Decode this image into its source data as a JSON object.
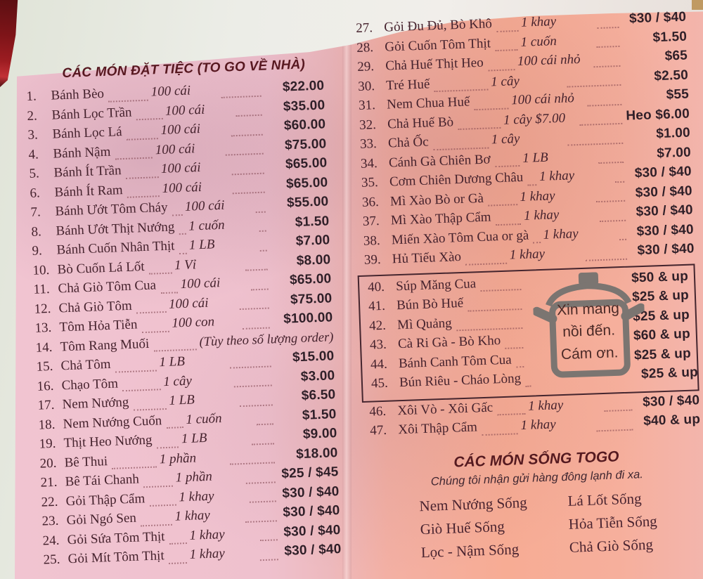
{
  "left_page": {
    "header": "CÁC MÓN ĐẶT TIỆC (TO GO VỀ NHÀ)",
    "items": [
      {
        "num": "1.",
        "name": "Bánh Bèo",
        "qty": "100 cái",
        "price": "$22.00"
      },
      {
        "num": "2.",
        "name": "Bánh Lọc Trần",
        "qty": "100 cái",
        "price": "$35.00"
      },
      {
        "num": "3.",
        "name": "Bánh Lọc Lá",
        "qty": "100 cái",
        "price": "$60.00"
      },
      {
        "num": "4.",
        "name": "Bánh Nậm",
        "qty": "100 cái",
        "price": "$75.00"
      },
      {
        "num": "5.",
        "name": "Bánh Ít Trần",
        "qty": "100 cái",
        "price": "$65.00"
      },
      {
        "num": "6.",
        "name": "Bánh Ít Ram",
        "qty": "100 cái",
        "price": "$65.00"
      },
      {
        "num": "7.",
        "name": "Bánh Ướt Tôm Cháy",
        "qty": "100 cái",
        "price": "$55.00"
      },
      {
        "num": "8.",
        "name": "Bánh Ướt Thịt Nướng",
        "qty": "1 cuốn",
        "price": "$1.50"
      },
      {
        "num": "9.",
        "name": "Bánh Cuốn Nhân Thịt",
        "qty": "1 LB",
        "price": "$7.00"
      },
      {
        "num": "10.",
        "name": "Bò Cuốn Lá Lốt",
        "qty": "1 Vỉ",
        "price": "$8.00"
      },
      {
        "num": "11.",
        "name": "Chả Giò Tôm Cua",
        "qty": "100 cái",
        "price": "$65.00"
      },
      {
        "num": "12.",
        "name": "Chả Giò Tôm",
        "qty": "100 cái",
        "price": "$75.00"
      },
      {
        "num": "13.",
        "name": "Tôm Hỏa Tiễn",
        "qty": "100 con",
        "price": "$100.00"
      },
      {
        "num": "14.",
        "name": "Tôm Rang Muối",
        "note": "(Tùy theo số lượng order)"
      },
      {
        "num": "15.",
        "name": "Chả Tôm",
        "qty": "1 LB",
        "price": "$15.00"
      },
      {
        "num": "16.",
        "name": "Chạo Tôm",
        "qty": "1 cây",
        "price": "$3.00"
      },
      {
        "num": "17.",
        "name": "Nem Nướng",
        "qty": "1 LB",
        "price": "$6.50"
      },
      {
        "num": "18.",
        "name": "Nem Nướng Cuốn",
        "qty": "1 cuốn",
        "price": "$1.50"
      },
      {
        "num": "19.",
        "name": "Thịt Heo Nướng",
        "qty": "1 LB",
        "price": "$9.00"
      },
      {
        "num": "20.",
        "name": "Bê Thui",
        "qty": "1 phần",
        "price": "$18.00"
      },
      {
        "num": "21.",
        "name": "Bê Tái Chanh",
        "qty": "1 phần",
        "price": "$25 / $45"
      },
      {
        "num": "22.",
        "name": "Gỏi Thập Cẩm",
        "qty": "1 khay",
        "price": "$30 / $40"
      },
      {
        "num": "23.",
        "name": "Gỏi Ngó Sen",
        "qty": "1 khay",
        "price": "$30 / $40"
      },
      {
        "num": "24.",
        "name": "Gỏi Sứa Tôm Thịt",
        "qty": "1 khay",
        "price": "$30 / $40"
      },
      {
        "num": "25.",
        "name": "Gỏi Mít Tôm Thịt",
        "qty": "1 khay",
        "price": "$30 / $40"
      }
    ]
  },
  "right_page": {
    "items_top": [
      {
        "num": "27.",
        "name": "Gỏi Đu Đủ, Bò Khô",
        "qty": "1 khay",
        "price": "$30 / $40"
      },
      {
        "num": "28.",
        "name": "Gỏi Cuốn Tôm Thịt",
        "qty": "1 cuốn",
        "price": "$1.50"
      },
      {
        "num": "29.",
        "name": "Chả Huế Thịt Heo",
        "qty": "100 cái nhỏ",
        "price": "$65"
      },
      {
        "num": "30.",
        "name": "Tré Huế",
        "qty": "1 cây",
        "price": "$2.50"
      },
      {
        "num": "31.",
        "name": "Nem Chua Huế",
        "qty": "100 cái nhỏ",
        "price": "$55"
      },
      {
        "num": "32.",
        "name": "Chả Huế Bò",
        "qty": "1 cây $7.00",
        "price": "Heo $6.00"
      },
      {
        "num": "33.",
        "name": "Chả Ốc",
        "qty": "1 cây",
        "price": "$1.00"
      },
      {
        "num": "34.",
        "name": "Cánh Gà Chiên Bơ",
        "qty": "1 LB",
        "price": "$7.00"
      },
      {
        "num": "35.",
        "name": "Cơm Chiên Dương Châu",
        "qty": "1 khay",
        "price": "$30 / $40"
      },
      {
        "num": "36.",
        "name": "Mì Xào Bò or Gà",
        "qty": "1 khay",
        "price": "$30 / $40"
      },
      {
        "num": "37.",
        "name": "Mì Xào Thập Cẩm",
        "qty": "1 khay",
        "price": "$30 / $40"
      },
      {
        "num": "38.",
        "name": "Miến Xào Tôm Cua or gà",
        "qty": "1 khay",
        "price": "$30 / $40"
      },
      {
        "num": "39.",
        "name": "Hủ Tiếu Xào",
        "qty": "1 khay",
        "price": "$30 / $40"
      }
    ],
    "soup_box": {
      "icon": "stock-pot-icon",
      "note_lines": [
        "Xin mang",
        "nồi đến.",
        "Cám ơn."
      ],
      "items": [
        {
          "num": "40.",
          "name": "Súp Măng Cua",
          "price": "$50 & up"
        },
        {
          "num": "41.",
          "name": "Bún Bò Huế",
          "price": "$25 & up"
        },
        {
          "num": "42.",
          "name": "Mì Quảng",
          "price": "$25 & up"
        },
        {
          "num": "43.",
          "name": "Cà Ri Gà - Bò Kho",
          "price": "$60 & up"
        },
        {
          "num": "44.",
          "name": "Bánh Canh Tôm Cua",
          "price": "$25 & up"
        },
        {
          "num": "45.",
          "name": "Bún Riêu - Cháo Lòng",
          "price": "$25 & up"
        }
      ]
    },
    "items_bottom": [
      {
        "num": "46.",
        "name": "Xôi Vò - Xôi Gấc",
        "qty": "1 khay",
        "price": "$30 / $40"
      },
      {
        "num": "47.",
        "name": "Xôi Thập Cẩm",
        "qty": "1 khay",
        "price": "$40 & up"
      }
    ],
    "togo_section": {
      "header": "CÁC MÓN SỐNG TOGO",
      "subtitle": "Chúng tôi nhận gửi hàng đông lạnh đi xa.",
      "col1": [
        "Nem Nướng Sống",
        "Giò Huế Sống",
        "Lọc - Nậm Sống"
      ],
      "col2": [
        "Lá Lốt Sống",
        "Hỏa Tiễn Sống",
        "Chả Giò Sống"
      ]
    }
  },
  "colors": {
    "paper_pink": "#efc1ce",
    "paper_salmon": "#f6ac95",
    "text_maroon": "#45222d",
    "price_dark": "#2f1f28",
    "header_red": "#571820",
    "box_border": "#44252e",
    "pot_gray": "#7b7571",
    "red_object": "#9c1c21"
  }
}
